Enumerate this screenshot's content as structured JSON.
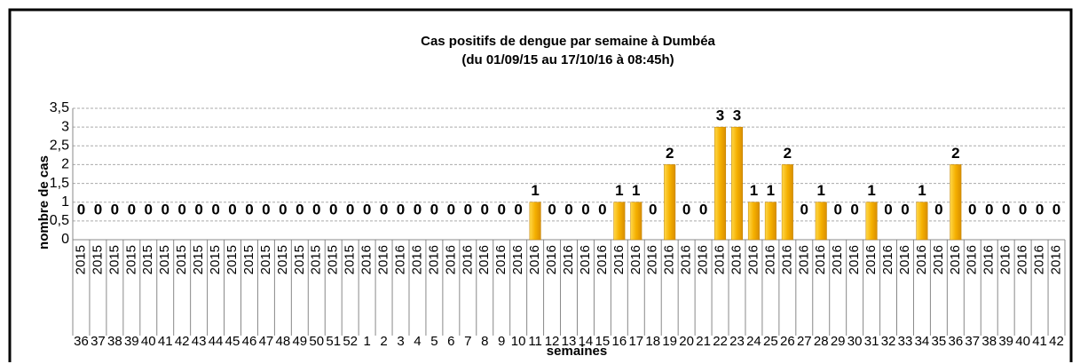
{
  "chart_data": {
    "type": "bar",
    "title": "Cas positifs de dengue par semaine à Dumbéa",
    "subtitle": "(du 01/09/15 au 17/10/16 à 08:45h)",
    "y_label": "nombre de cas",
    "x_label": "semaines",
    "category_years": [
      "2015",
      "2015",
      "2015",
      "2015",
      "2015",
      "2015",
      "2015",
      "2015",
      "2015",
      "2015",
      "2015",
      "2015",
      "2015",
      "2015",
      "2015",
      "2015",
      "2015",
      "2016",
      "2016",
      "2016",
      "2016",
      "2016",
      "2016",
      "2016",
      "2016",
      "2016",
      "2016",
      "2016",
      "2016",
      "2016",
      "2016",
      "2016",
      "2016",
      "2016",
      "2016",
      "2016",
      "2016",
      "2016",
      "2016",
      "2016",
      "2016",
      "2016",
      "2016",
      "2016",
      "2016",
      "2016",
      "2016",
      "2016",
      "2016",
      "2016",
      "2016",
      "2016",
      "2016",
      "2016",
      "2016",
      "2016",
      "2016",
      "2016",
      "2016"
    ],
    "categories": [
      "36",
      "37",
      "38",
      "39",
      "40",
      "41",
      "42",
      "43",
      "44",
      "45",
      "46",
      "47",
      "48",
      "49",
      "50",
      "51",
      "52",
      "1",
      "2",
      "3",
      "4",
      "5",
      "6",
      "7",
      "8",
      "9",
      "10",
      "11",
      "12",
      "13",
      "14",
      "15",
      "16",
      "17",
      "18",
      "19",
      "20",
      "21",
      "22",
      "23",
      "24",
      "25",
      "26",
      "27",
      "28",
      "29",
      "30",
      "31",
      "32",
      "33",
      "34",
      "35",
      "36",
      "37",
      "38",
      "39",
      "40",
      "41",
      "42"
    ],
    "values": [
      0,
      0,
      0,
      0,
      0,
      0,
      0,
      0,
      0,
      0,
      0,
      0,
      0,
      0,
      0,
      0,
      0,
      0,
      0,
      0,
      0,
      0,
      0,
      0,
      0,
      0,
      0,
      1,
      0,
      0,
      0,
      0,
      1,
      1,
      0,
      2,
      0,
      0,
      3,
      3,
      1,
      1,
      2,
      0,
      1,
      0,
      0,
      1,
      0,
      0,
      1,
      0,
      2,
      0,
      0,
      0,
      0,
      0,
      0
    ],
    "color": "#f5b000",
    "ylim": [
      0,
      3.5
    ],
    "yticks": [
      0,
      {
        "value": 0.5,
        "label": "0,5"
      },
      1,
      {
        "value": 1.5,
        "label": "1,5"
      },
      2,
      {
        "value": 2.5,
        "label": "2,5"
      },
      3,
      {
        "value": 3.5,
        "label": "3,5"
      }
    ],
    "grid": true
  }
}
